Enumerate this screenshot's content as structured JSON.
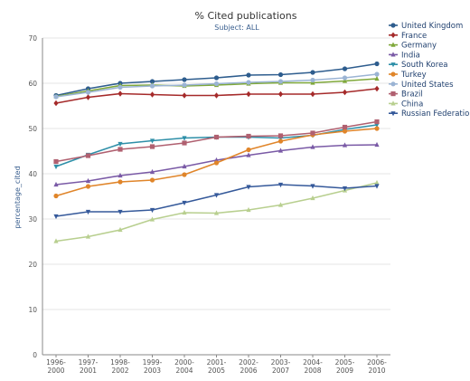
{
  "chart_data": {
    "type": "line",
    "title": "% Cited publications",
    "subtitle": "Subject: ALL",
    "xlabel": "",
    "ylabel": "percentage_cited",
    "ylim": [
      0,
      70
    ],
    "yticks": [
      0,
      10,
      20,
      30,
      40,
      50,
      60,
      70
    ],
    "grid": true,
    "legend": "top-right",
    "categories": [
      "1996-2000",
      "1997-2001",
      "1998-2002",
      "1999-2003",
      "2000-2004",
      "2001-2005",
      "2002-2006",
      "2003-2007",
      "2004-2008",
      "2005-2009",
      "2006-2010"
    ],
    "series": [
      {
        "name": "United Kingdom",
        "color": "#2e5d8e",
        "marker": "circle",
        "values": [
          57.3,
          58.8,
          60.0,
          60.4,
          60.8,
          61.2,
          61.8,
          61.9,
          62.4,
          63.2,
          64.3
        ]
      },
      {
        "name": "France",
        "color": "#a52a2a",
        "marker": "diamond",
        "values": [
          55.6,
          56.9,
          57.7,
          57.5,
          57.3,
          57.3,
          57.6,
          57.6,
          57.6,
          58.0,
          58.8
        ]
      },
      {
        "name": "Germany",
        "color": "#7fa83a",
        "marker": "triangle",
        "values": [
          57.1,
          58.3,
          59.5,
          59.6,
          59.4,
          59.6,
          59.9,
          60.1,
          60.1,
          60.5,
          61.0
        ]
      },
      {
        "name": "India",
        "color": "#7a5aa6",
        "marker": "triangle",
        "values": [
          37.6,
          38.4,
          39.6,
          40.4,
          41.6,
          43.0,
          44.1,
          45.1,
          45.9,
          46.3,
          46.4
        ]
      },
      {
        "name": "South Korea",
        "color": "#2e8fa8",
        "marker": "triangle-down",
        "values": [
          41.6,
          44.2,
          46.6,
          47.3,
          47.9,
          48.1,
          48.1,
          47.9,
          48.5,
          49.8,
          50.8
        ]
      },
      {
        "name": "Turkey",
        "color": "#e0852a",
        "marker": "circle",
        "values": [
          35.1,
          37.2,
          38.2,
          38.6,
          39.8,
          42.4,
          45.3,
          47.2,
          48.6,
          49.4,
          50.0
        ]
      },
      {
        "name": "United States",
        "color": "#9bb4d4",
        "marker": "circle",
        "values": [
          57.0,
          58.0,
          59.1,
          59.4,
          59.6,
          59.9,
          60.2,
          60.4,
          60.7,
          61.2,
          62.0
        ]
      },
      {
        "name": "Brazil",
        "color": "#b06070",
        "marker": "square",
        "values": [
          42.7,
          44.0,
          45.4,
          46.0,
          46.8,
          48.1,
          48.3,
          48.4,
          49.0,
          50.3,
          51.5
        ]
      },
      {
        "name": "China",
        "color": "#b8cf8f",
        "marker": "triangle",
        "values": [
          25.1,
          26.1,
          27.6,
          29.9,
          31.4,
          31.3,
          32.0,
          33.1,
          34.6,
          36.3,
          38.0
        ]
      },
      {
        "name": "Russian Federation",
        "color": "#35599a",
        "marker": "triangle-down",
        "values": [
          30.6,
          31.6,
          31.6,
          32.0,
          33.6,
          35.3,
          37.1,
          37.6,
          37.3,
          36.8,
          37.3
        ]
      }
    ]
  }
}
